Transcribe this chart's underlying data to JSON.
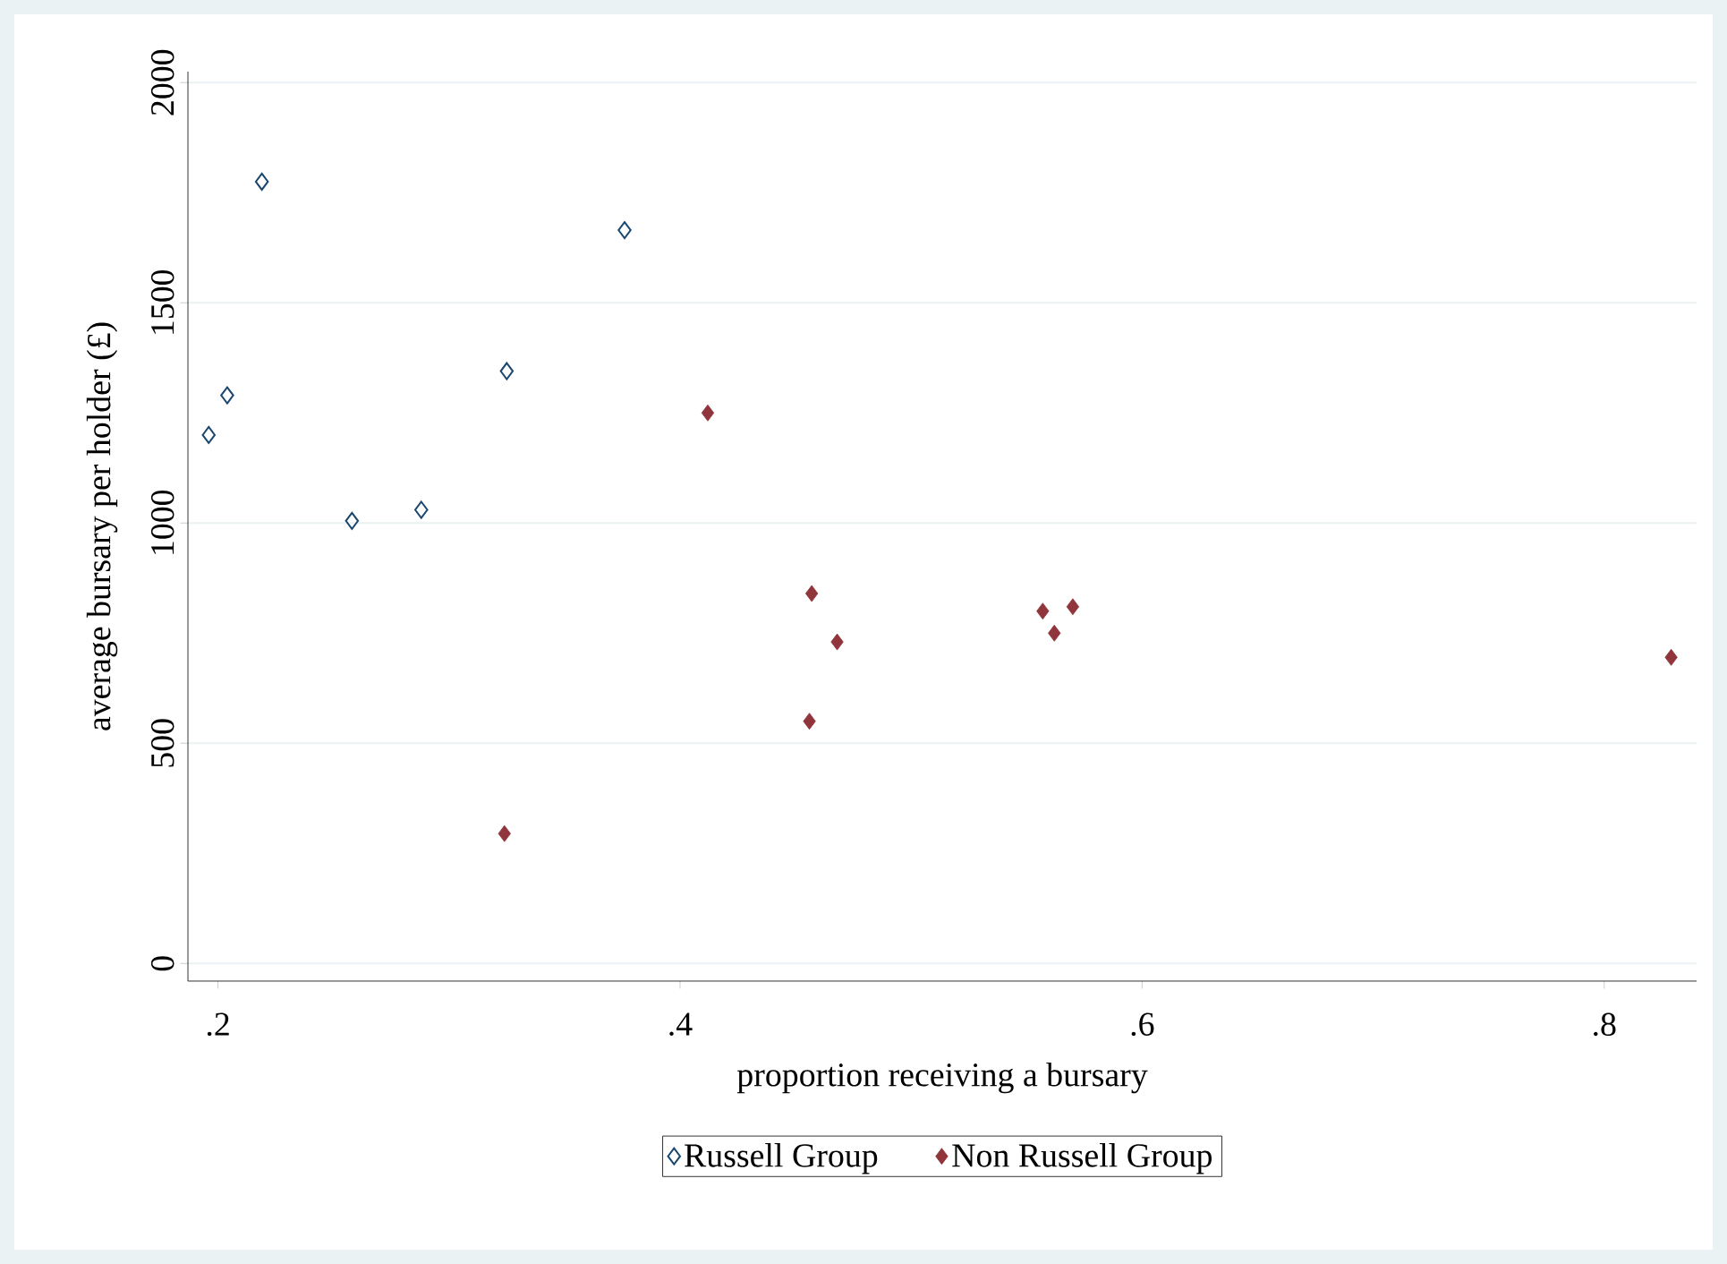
{
  "chart_data": {
    "type": "scatter",
    "xlabel": "proportion receiving a bursary",
    "ylabel": "average bursary per holder (£)",
    "xlim": [
      0.187,
      0.84
    ],
    "ylim": [
      -40,
      2025
    ],
    "xticks": [
      {
        "value": 0.2,
        "label": ".2"
      },
      {
        "value": 0.4,
        "label": ".4"
      },
      {
        "value": 0.6,
        "label": ".6"
      },
      {
        "value": 0.8,
        "label": ".8"
      }
    ],
    "yticks": [
      0,
      500,
      1000,
      1500,
      2000
    ],
    "grid": "y",
    "legend": "bottom",
    "marker": "diamond",
    "series": [
      {
        "name": "Russell Group",
        "color": "#1a476f",
        "x": [
          0.196,
          0.204,
          0.219,
          0.258,
          0.288,
          0.325,
          0.376
        ],
        "values": [
          1200,
          1290,
          1775,
          1005,
          1030,
          1345,
          1665
        ]
      },
      {
        "name": "Non Russell Group",
        "color": "#90353b",
        "x": [
          0.324,
          0.412,
          0.457,
          0.468,
          0.456,
          0.557,
          0.562,
          0.57,
          0.829
        ],
        "values": [
          295,
          1250,
          840,
          730,
          550,
          800,
          750,
          810,
          695
        ]
      }
    ]
  }
}
